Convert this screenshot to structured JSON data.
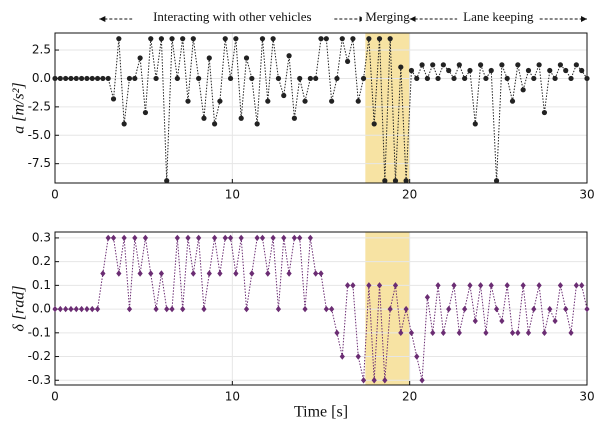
{
  "chart_data": [
    {
      "type": "line",
      "ylabel": "a [m/s²]",
      "x": [
        0,
        0.3,
        0.6,
        0.9,
        1.2,
        1.5,
        1.8,
        2.1,
        2.4,
        2.7,
        3,
        3.3,
        3.6,
        3.9,
        4.2,
        4.5,
        4.8,
        5.1,
        5.4,
        5.7,
        6,
        6.3,
        6.6,
        6.9,
        7.2,
        7.5,
        7.8,
        8.1,
        8.4,
        8.7,
        9,
        9.3,
        9.6,
        9.9,
        10.2,
        10.5,
        10.8,
        11.1,
        11.4,
        11.7,
        12,
        12.3,
        12.6,
        12.9,
        13.2,
        13.5,
        13.8,
        14.1,
        14.4,
        14.7,
        15,
        15.3,
        15.6,
        15.9,
        16.2,
        16.5,
        16.8,
        17.1,
        17.4,
        17.7,
        18,
        18.3,
        18.6,
        18.9,
        19.2,
        19.5,
        19.8,
        20.1,
        20.4,
        20.7,
        21,
        21.3,
        21.6,
        21.9,
        22.2,
        22.5,
        22.8,
        23.1,
        23.4,
        23.7,
        24,
        24.3,
        24.6,
        24.9,
        25.2,
        25.5,
        25.8,
        26.1,
        26.4,
        26.7,
        27,
        27.3,
        27.6,
        27.9,
        28.2,
        28.5,
        28.8,
        29.1,
        29.4,
        29.7,
        30
      ],
      "series": [
        {
          "color": "#222222",
          "marker": "circle",
          "values": [
            0,
            0,
            0,
            0,
            0,
            0,
            0,
            0,
            0,
            0,
            0,
            -1.8,
            3.5,
            -4,
            0,
            0,
            1.8,
            -3,
            3.5,
            0,
            3.5,
            -9,
            3.5,
            0,
            3.5,
            -2,
            3.5,
            0,
            -3.5,
            1.8,
            -4,
            -2,
            3.5,
            0,
            3.5,
            -3.5,
            1.8,
            0,
            -4,
            3.5,
            -2,
            3.5,
            0,
            -1.5,
            2,
            -3.5,
            0,
            -2,
            0,
            0,
            3.5,
            3.5,
            -2,
            0,
            3.5,
            1.5,
            3.5,
            -2,
            0,
            3.5,
            -4,
            3.5,
            -9,
            3.5,
            -9,
            1,
            -9,
            0.7,
            0,
            1.2,
            0,
            1.2,
            0,
            1.2,
            0.7,
            0,
            1.2,
            0,
            0.7,
            -4,
            1.2,
            0,
            0.7,
            -9,
            1.2,
            0,
            -2,
            1.2,
            -1,
            0.7,
            0,
            1.2,
            -3,
            0.7,
            0,
            1.2,
            0.7,
            0,
            1.2,
            0.7,
            0
          ]
        }
      ],
      "xlim": [
        0,
        30
      ],
      "xticks": [
        0,
        10,
        20,
        30
      ],
      "ylim": [
        -9.2,
        4
      ],
      "yticks": [
        {
          "value": 2.5,
          "label": "2.5"
        },
        {
          "value": 0,
          "label": "0.0"
        },
        {
          "value": -2.5,
          "label": "-2.5"
        },
        {
          "value": -5,
          "label": "-5.0"
        },
        {
          "value": -7.5,
          "label": "-7.5"
        }
      ],
      "grid": true,
      "highlight": {
        "x": [
          17.5,
          20
        ],
        "color": "#f5dc8c"
      },
      "annotations": [
        {
          "text": "Interacting with other vehicles",
          "x": [
            2.5,
            17.5
          ]
        },
        {
          "text": "Merging",
          "x": [
            17.5,
            20
          ]
        },
        {
          "text": "Lane keeping",
          "x": [
            20,
            30
          ]
        }
      ]
    },
    {
      "type": "line",
      "ylabel": "δ [rad]",
      "xlabel": "Time [s]",
      "x": [
        0,
        0.3,
        0.6,
        0.9,
        1.2,
        1.5,
        1.8,
        2.1,
        2.4,
        2.7,
        3,
        3.3,
        3.6,
        3.9,
        4.2,
        4.5,
        4.8,
        5.1,
        5.4,
        5.7,
        6,
        6.3,
        6.6,
        6.9,
        7.2,
        7.5,
        7.8,
        8.1,
        8.4,
        8.7,
        9,
        9.3,
        9.6,
        9.9,
        10.2,
        10.5,
        10.8,
        11.1,
        11.4,
        11.7,
        12,
        12.3,
        12.6,
        12.9,
        13.2,
        13.5,
        13.8,
        14.1,
        14.4,
        14.7,
        15,
        15.3,
        15.6,
        15.9,
        16.2,
        16.5,
        16.8,
        17.1,
        17.4,
        17.7,
        18,
        18.3,
        18.6,
        18.9,
        19.2,
        19.5,
        19.8,
        20.1,
        20.4,
        20.7,
        21,
        21.3,
        21.6,
        21.9,
        22.2,
        22.5,
        22.8,
        23.1,
        23.4,
        23.7,
        24,
        24.3,
        24.6,
        24.9,
        25.2,
        25.5,
        25.8,
        26.1,
        26.4,
        26.7,
        27,
        27.3,
        27.6,
        27.9,
        28.2,
        28.5,
        28.8,
        29.1,
        29.4,
        29.7,
        30
      ],
      "series": [
        {
          "color": "#6b2d73",
          "marker": "diamond",
          "values": [
            0,
            0,
            0,
            0,
            0,
            0,
            0,
            0,
            0,
            0.15,
            0.3,
            0.3,
            0.15,
            0.3,
            0,
            0.3,
            0.15,
            0.3,
            0.15,
            0,
            0.15,
            0,
            0,
            0.3,
            0,
            0.3,
            0.15,
            0.3,
            0,
            0.15,
            0.3,
            0.15,
            0.3,
            0.3,
            0.15,
            0.3,
            0,
            0.15,
            0.3,
            0.3,
            0.15,
            0.3,
            0,
            0.3,
            0.15,
            0.3,
            0.3,
            0,
            0.3,
            0.15,
            0.15,
            0,
            0,
            -0.1,
            -0.2,
            0.1,
            0.1,
            -0.2,
            -0.3,
            0.1,
            -0.3,
            0.1,
            -0.3,
            0,
            0.1,
            -0.1,
            0,
            -0.1,
            -0.2,
            -0.3,
            0.05,
            -0.1,
            0.1,
            -0.1,
            0,
            0.1,
            -0.1,
            0,
            0.1,
            -0.05,
            0.1,
            -0.1,
            0.1,
            0,
            -0.05,
            0.1,
            -0.1,
            -0.1,
            0.1,
            -0.1,
            0,
            0.1,
            -0.1,
            0,
            -0.05,
            0.1,
            0,
            -0.1,
            0.1,
            0.1,
            0
          ]
        }
      ],
      "xlim": [
        0,
        30
      ],
      "xticks": [
        0,
        10,
        20,
        30
      ],
      "ylim": [
        -0.32,
        0.325
      ],
      "yticks": [
        {
          "value": 0.3,
          "label": "0.3"
        },
        {
          "value": 0.2,
          "label": "0.2"
        },
        {
          "value": 0.1,
          "label": "0.1"
        },
        {
          "value": 0,
          "label": "0.0"
        },
        {
          "value": -0.1,
          "label": "-0.1"
        },
        {
          "value": -0.2,
          "label": "-0.2"
        },
        {
          "value": -0.3,
          "label": "-0.3"
        }
      ],
      "grid": true,
      "highlight": {
        "x": [
          17.5,
          20
        ],
        "color": "#f5dc8c"
      }
    }
  ]
}
